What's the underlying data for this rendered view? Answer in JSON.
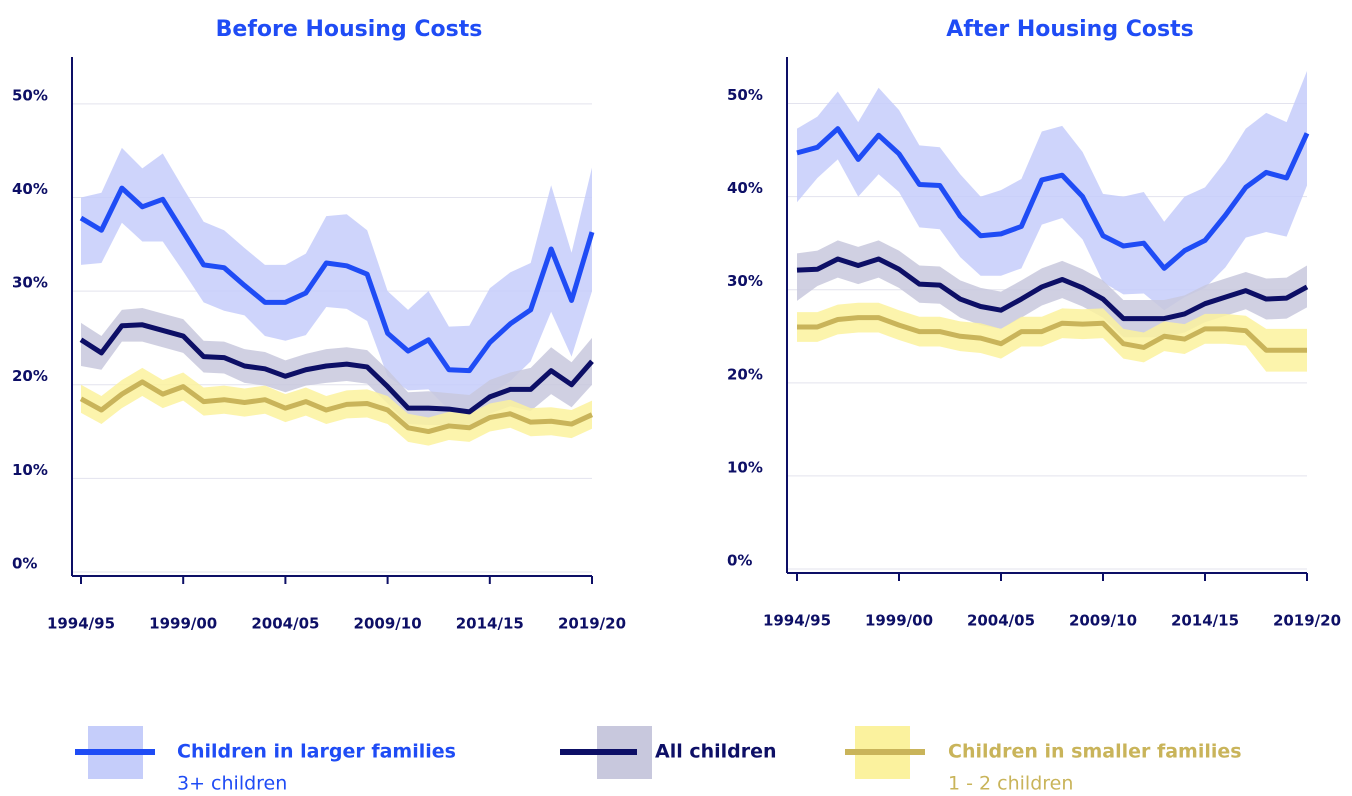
{
  "chart_data": [
    {
      "type": "line",
      "title": "Before Housing Costs",
      "categories": [
        "1994/95",
        null,
        null,
        null,
        null,
        "1999/00",
        null,
        null,
        null,
        null,
        "2004/05",
        null,
        null,
        null,
        null,
        "2009/10",
        null,
        null,
        null,
        null,
        "2014/15",
        null,
        null,
        null,
        null,
        "2019/20"
      ],
      "ylim": [
        0,
        55
      ],
      "yticks": [
        {
          "value": 0,
          "label": "0%"
        },
        {
          "value": 10,
          "label": "10%"
        },
        {
          "value": 20,
          "label": "20%"
        },
        {
          "value": 30,
          "label": "30%"
        },
        {
          "value": 40,
          "label": "40%"
        },
        {
          "value": 50,
          "label": "50%"
        }
      ],
      "grid": true,
      "series": [
        {
          "name": "Children in larger families",
          "note": "3+ children",
          "color": "#1f4cf5",
          "band_color": "#c5cdfa",
          "values": [
            37.8,
            36.5,
            41,
            39,
            39.8,
            36.3,
            32.8,
            32.5,
            30.6,
            28.8,
            28.8,
            29.8,
            33,
            32.7,
            31.8,
            25.5,
            23.6,
            24.8,
            21.6,
            21.5,
            24.5,
            26.5,
            28,
            34.5,
            29,
            36.3
          ],
          "upper": [
            40,
            40.5,
            45.3,
            43.1,
            44.7,
            41,
            37.4,
            36.5,
            34.6,
            32.8,
            32.8,
            34,
            38,
            38.2,
            36.5,
            30,
            28,
            30,
            26.2,
            26.3,
            30.3,
            32,
            33,
            41.3,
            34.1,
            43.2
          ],
          "lower": [
            32.8,
            33,
            37.3,
            35.3,
            35.3,
            32.1,
            28.8,
            27.9,
            27.4,
            25.2,
            24.7,
            25.3,
            28.3,
            28.1,
            26.8,
            20.9,
            19.4,
            19.5,
            17.3,
            17.2,
            18.9,
            20.4,
            22.5,
            27.8,
            23,
            30
          ]
        },
        {
          "name": "All children",
          "color": "#0d0f66",
          "band_color": "#c8c8dd",
          "values": [
            24.8,
            23.4,
            26.3,
            26.4,
            25.8,
            25.2,
            23,
            22.9,
            22,
            21.7,
            20.9,
            21.6,
            22,
            22.2,
            21.9,
            19.8,
            17.5,
            17.5,
            17.4,
            17.1,
            18.7,
            19.5,
            19.5,
            21.5,
            20,
            22.5
          ],
          "upper": [
            26.6,
            25.2,
            28,
            28.2,
            27.6,
            27,
            24.7,
            24.6,
            23.8,
            23.5,
            22.6,
            23.3,
            23.8,
            24,
            23.7,
            21.6,
            19.2,
            19.3,
            19.1,
            18.9,
            20.5,
            21.3,
            21.8,
            24,
            22.4,
            25
          ],
          "lower": [
            22,
            21.6,
            24.6,
            24.6,
            24,
            23.4,
            21.3,
            21.2,
            20.2,
            19.9,
            19.2,
            19.9,
            20.2,
            20.4,
            20.1,
            18,
            15.8,
            15.7,
            15.7,
            15.3,
            16.9,
            17.7,
            17.2,
            19,
            17.6,
            20
          ]
        },
        {
          "name": "Children in smaller families",
          "note": "1 - 2 children",
          "color": "#c9b45a",
          "band_color": "#fbf29e",
          "values": [
            18.5,
            17.3,
            19,
            20.3,
            19,
            19.8,
            18.2,
            18.4,
            18.1,
            18.4,
            17.5,
            18.2,
            17.3,
            17.9,
            18,
            17.3,
            15.4,
            15,
            15.6,
            15.4,
            16.5,
            16.9,
            16,
            16.1,
            15.8,
            16.8
          ],
          "upper": [
            20,
            18.8,
            20.5,
            21.8,
            20.5,
            21.3,
            19.7,
            19.9,
            19.6,
            19.9,
            19,
            19.7,
            18.8,
            19.4,
            19.5,
            18.8,
            16.9,
            16.5,
            17.1,
            16.9,
            18,
            18.4,
            17.5,
            17.6,
            17.3,
            18.3
          ],
          "lower": [
            17,
            15.8,
            17.5,
            18.8,
            17.5,
            18.3,
            16.7,
            16.9,
            16.6,
            16.9,
            16,
            16.7,
            15.8,
            16.4,
            16.5,
            15.8,
            13.9,
            13.5,
            14.1,
            13.9,
            15,
            15.4,
            14.5,
            14.6,
            14.3,
            15.3
          ]
        }
      ]
    },
    {
      "type": "line",
      "title": "After Housing Costs",
      "categories": [
        "1994/95",
        null,
        null,
        null,
        null,
        "1999/00",
        null,
        null,
        null,
        null,
        "2004/05",
        null,
        null,
        null,
        null,
        "2009/10",
        null,
        null,
        null,
        null,
        "2014/15",
        null,
        null,
        null,
        null,
        "2019/20"
      ],
      "ylim": [
        0,
        55
      ],
      "yticks": [
        {
          "value": 0,
          "label": "0%"
        },
        {
          "value": 10,
          "label": "10%"
        },
        {
          "value": 20,
          "label": "20%"
        },
        {
          "value": 30,
          "label": "30%"
        },
        {
          "value": 40,
          "label": "40%"
        },
        {
          "value": 50,
          "label": "50%"
        }
      ],
      "grid": true,
      "series": [
        {
          "color": "#1f4cf5",
          "band_color": "#c5cdfa",
          "values": [
            44.7,
            45.3,
            47.3,
            44,
            46.6,
            44.6,
            41.3,
            41.2,
            37.9,
            35.8,
            36,
            36.8,
            41.8,
            42.3,
            40,
            35.8,
            34.7,
            35,
            32.3,
            34.2,
            35.3,
            38,
            41,
            42.6,
            42,
            46.8
          ],
          "upper": [
            47.3,
            48.6,
            51.3,
            48,
            51.7,
            49.3,
            45.5,
            45.3,
            42.4,
            40,
            40.7,
            41.9,
            47,
            47.6,
            44.8,
            40.3,
            40,
            40.5,
            37.3,
            40,
            41,
            43.8,
            47.3,
            49,
            48,
            53.5
          ],
          "lower": [
            39.4,
            42,
            44,
            40,
            42.4,
            40.5,
            36.7,
            36.5,
            33.5,
            31.5,
            31.5,
            32.3,
            37,
            37.7,
            35.4,
            30.8,
            29.5,
            29.6,
            27.8,
            29.2,
            30.2,
            32.4,
            35.6,
            36.2,
            35.7,
            41.2
          ]
        },
        {
          "color": "#0d0f66",
          "band_color": "#c8c8dd",
          "values": [
            32.1,
            32.2,
            33.3,
            32.6,
            33.3,
            32.2,
            30.6,
            30.5,
            29,
            28.2,
            27.8,
            29,
            30.3,
            31.1,
            30.2,
            29,
            26.9,
            26.9,
            26.9,
            27.4,
            28.5,
            29.2,
            29.9,
            29,
            29.1,
            30.3
          ],
          "upper": [
            33.9,
            34.2,
            35.3,
            34.6,
            35.3,
            34.2,
            32.6,
            32.5,
            31,
            30.2,
            29.8,
            31,
            32.3,
            33.1,
            32.2,
            31,
            28.9,
            28.9,
            28.9,
            29.4,
            30.5,
            31.2,
            31.9,
            31.2,
            31.3,
            32.6
          ],
          "lower": [
            28.8,
            30.4,
            31.3,
            30.6,
            31.3,
            30.2,
            28.6,
            28.5,
            27,
            26.2,
            25.8,
            27,
            28.3,
            29.1,
            28.2,
            27,
            24.9,
            24.9,
            24.9,
            25.4,
            26.5,
            27.2,
            27.9,
            26.8,
            26.9,
            28.1
          ]
        },
        {
          "color": "#c9b45a",
          "band_color": "#fbf29e",
          "values": [
            26,
            26,
            26.8,
            27,
            27,
            26.2,
            25.5,
            25.5,
            25,
            24.8,
            24.2,
            25.5,
            25.5,
            26.4,
            26.3,
            26.4,
            24.2,
            23.8,
            25,
            24.7,
            25.8,
            25.8,
            25.6,
            23.5,
            23.5,
            23.5
          ],
          "upper": [
            27.6,
            27.6,
            28.4,
            28.6,
            28.6,
            27.8,
            27.1,
            27.1,
            26.6,
            26.4,
            25.8,
            27.1,
            27.1,
            28,
            27.9,
            28,
            25.8,
            25.4,
            26.6,
            26.3,
            27.4,
            27.4,
            27.2,
            25.8,
            25.8,
            25.8
          ],
          "lower": [
            24.4,
            24.4,
            25.2,
            25.4,
            25.4,
            24.6,
            23.9,
            23.9,
            23.4,
            23.2,
            22.6,
            23.9,
            23.9,
            24.8,
            24.7,
            24.8,
            22.6,
            22.2,
            23.4,
            23.1,
            24.2,
            24.2,
            24,
            21.2,
            21.2,
            21.2
          ]
        }
      ]
    }
  ]
}
